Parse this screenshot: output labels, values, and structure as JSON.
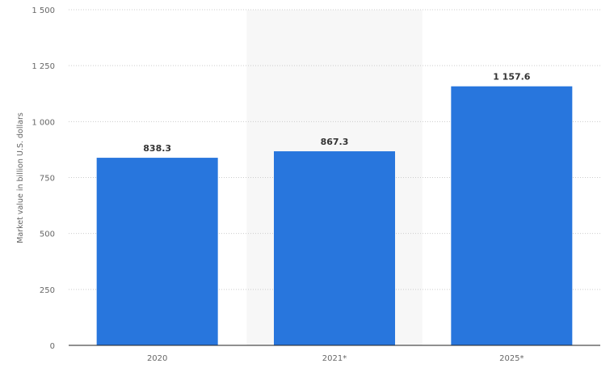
{
  "chart_data": {
    "type": "bar",
    "title": "",
    "xlabel": "",
    "ylabel": "Market value in billion U.S. dollars",
    "categories": [
      "2020",
      "2021*",
      "2025*"
    ],
    "values": [
      838.3,
      867.3,
      1157.6
    ],
    "data_labels": [
      "838.3",
      "867.3",
      "1 157.6"
    ],
    "ylim": [
      0,
      1500
    ],
    "yticks": [
      0,
      250,
      500,
      750,
      1000,
      1250,
      1500
    ],
    "ytick_labels": [
      "0",
      "250",
      "500",
      "750",
      "1 000",
      "1 250",
      "1 500"
    ],
    "highlighted_category": "2021*",
    "grid": true,
    "bar_color": "#2876dd",
    "highlight_color": "#f7f7f7"
  }
}
